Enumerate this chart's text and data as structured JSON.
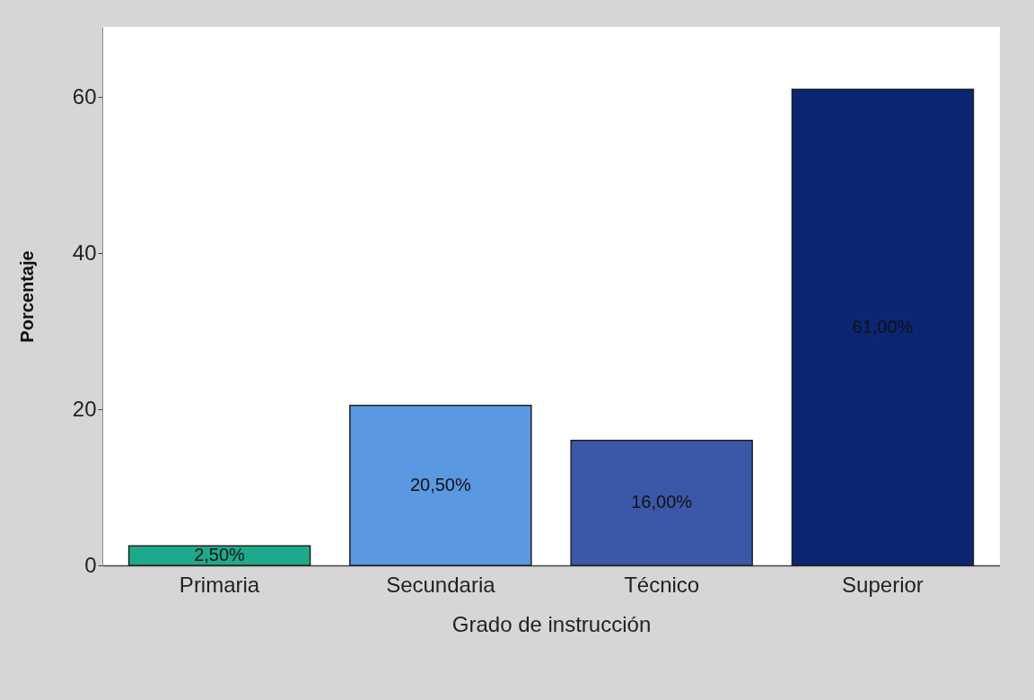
{
  "chart_data": {
    "type": "bar",
    "xlabel": "Grado de instrucción",
    "ylabel": "Porcentaje",
    "categories": [
      "Primaria",
      "Secundaria",
      "Técnico",
      "Superior"
    ],
    "values": [
      2.5,
      20.5,
      16,
      61
    ],
    "colors": [
      "#1fa98c",
      "#5b98e2",
      "#3b58a8",
      "#0b2672"
    ],
    "value_labels": [
      "2,50%",
      "20,50%",
      "16,00%",
      "61,00%"
    ],
    "ylim": [
      0,
      69
    ],
    "yticks": [
      0,
      20,
      40,
      60
    ],
    "grid": false,
    "legend": false
  }
}
